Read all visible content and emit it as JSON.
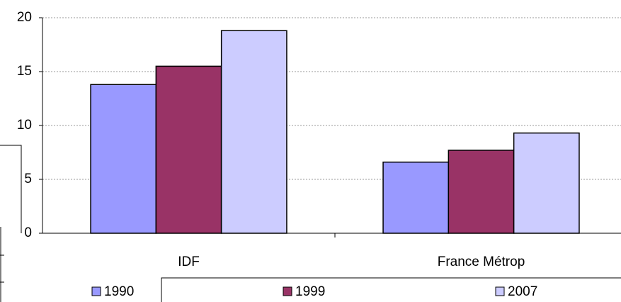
{
  "chart_data": {
    "type": "bar",
    "categories": [
      "IDF",
      "France Métrop"
    ],
    "series": [
      {
        "name": "1990",
        "color": "#9999ff",
        "values": [
          13.8,
          6.6
        ]
      },
      {
        "name": "1999",
        "color": "#993366",
        "values": [
          15.5,
          7.7
        ]
      },
      {
        "name": "2007",
        "color": "#ccccff",
        "values": [
          18.8,
          9.3
        ]
      }
    ],
    "ylim": [
      0,
      20
    ],
    "yticks": [
      0,
      5,
      10,
      15,
      20
    ],
    "grid": true,
    "legend": "bottom"
  }
}
